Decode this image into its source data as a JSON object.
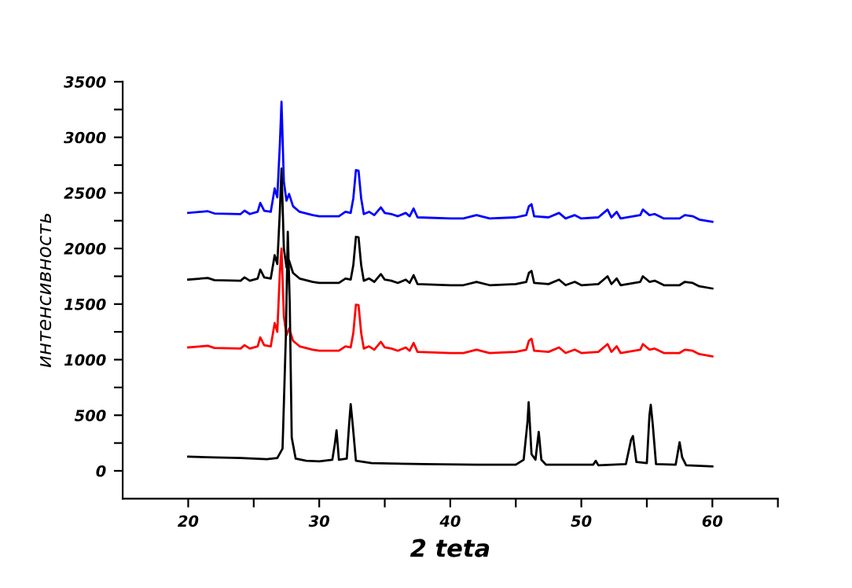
{
  "chart_data": {
    "type": "line",
    "xlabel": "2 teta",
    "ylabel": "интенсивность",
    "xlim": [
      15,
      65
    ],
    "ylim": [
      -250,
      3500
    ],
    "xticks": [
      20,
      {
        "value": 25,
        "label": null
      },
      30,
      {
        "value": 35,
        "label": null
      },
      40,
      {
        "value": 45,
        "label": null
      },
      50,
      {
        "value": 55,
        "label": null
      },
      60,
      {
        "value": 65,
        "label": null
      }
    ],
    "yticks": [
      0,
      {
        "value": 250,
        "label": null
      },
      500,
      {
        "value": 750,
        "label": null
      },
      1000,
      {
        "value": 1250,
        "label": null
      },
      1500,
      {
        "value": 1750,
        "label": null
      },
      2000,
      {
        "value": 2250,
        "label": null
      },
      2500,
      {
        "value": 2750,
        "label": null
      },
      3000,
      {
        "value": 3250,
        "label": null
      },
      3500
    ],
    "grid": false,
    "legend": false,
    "x": [
      20,
      21.5,
      22,
      24,
      24.3,
      24.7,
      25.3,
      25.5,
      25.8,
      26.3,
      26.6,
      26.8,
      27.0,
      27.12,
      27.3,
      27.5,
      27.7,
      28.0,
      28.5,
      29.5,
      30,
      31.5,
      32.0,
      32.4,
      32.6,
      32.8,
      33.0,
      33.2,
      33.4,
      33.8,
      34.2,
      34.7,
      35.0,
      35.5,
      36,
      36.6,
      36.9,
      37.2,
      37.5,
      40,
      41,
      42,
      43,
      45,
      45.8,
      46.0,
      46.2,
      46.4,
      47.5,
      48.3,
      48.8,
      49.5,
      50,
      51.3,
      52,
      52.3,
      52.7,
      53,
      54.5,
      54.7,
      55.2,
      55.6,
      56.3,
      57.5,
      57.9,
      58.5,
      59,
      60
    ],
    "series": [
      {
        "color": "#0000ff",
        "values": [
          2320,
          2335,
          2315,
          2310,
          2340,
          2310,
          2330,
          2410,
          2340,
          2330,
          2540,
          2460,
          2950,
          3320,
          2600,
          2430,
          2490,
          2380,
          2330,
          2300,
          2290,
          2290,
          2330,
          2320,
          2450,
          2705,
          2700,
          2450,
          2310,
          2330,
          2300,
          2370,
          2320,
          2310,
          2290,
          2320,
          2290,
          2360,
          2280,
          2270,
          2270,
          2300,
          2270,
          2280,
          2300,
          2380,
          2398,
          2290,
          2280,
          2320,
          2270,
          2300,
          2270,
          2280,
          2350,
          2280,
          2330,
          2270,
          2300,
          2350,
          2300,
          2310,
          2270,
          2270,
          2300,
          2290,
          2260,
          2240
        ]
      },
      {
        "color": "#000000",
        "values": [
          1720,
          1735,
          1715,
          1710,
          1740,
          1710,
          1730,
          1810,
          1740,
          1730,
          1940,
          1860,
          2350,
          2720,
          2000,
          1830,
          1890,
          1780,
          1730,
          1700,
          1690,
          1690,
          1730,
          1720,
          1850,
          2105,
          2100,
          1850,
          1710,
          1730,
          1700,
          1770,
          1720,
          1710,
          1690,
          1720,
          1690,
          1760,
          1680,
          1670,
          1670,
          1700,
          1670,
          1680,
          1700,
          1780,
          1798,
          1690,
          1680,
          1720,
          1670,
          1700,
          1670,
          1680,
          1750,
          1680,
          1730,
          1670,
          1700,
          1750,
          1700,
          1710,
          1670,
          1670,
          1700,
          1690,
          1660,
          1640
        ]
      },
      {
        "color": "#ff0000",
        "values": [
          1110,
          1125,
          1105,
          1100,
          1130,
          1100,
          1120,
          1200,
          1130,
          1120,
          1330,
          1250,
          1800,
          2000,
          1390,
          1220,
          1280,
          1170,
          1120,
          1090,
          1080,
          1080,
          1120,
          1110,
          1240,
          1495,
          1490,
          1240,
          1100,
          1120,
          1090,
          1160,
          1110,
          1100,
          1080,
          1110,
          1080,
          1150,
          1070,
          1060,
          1060,
          1090,
          1060,
          1070,
          1090,
          1170,
          1188,
          1080,
          1070,
          1110,
          1060,
          1090,
          1060,
          1070,
          1140,
          1070,
          1120,
          1060,
          1090,
          1140,
          1090,
          1100,
          1060,
          1060,
          1090,
          1080,
          1050,
          1030
        ]
      },
      {
        "color": "#000000",
        "x": [
          20,
          22,
          24,
          25,
          26,
          26.8,
          27.2,
          27.45,
          27.6,
          27.75,
          27.9,
          28.2,
          29,
          30,
          31,
          31.2,
          31.32,
          31.5,
          32.1,
          32.3,
          32.4,
          32.55,
          32.8,
          34,
          38,
          42,
          45,
          45.6,
          45.9,
          45.98,
          46.2,
          46.5,
          46.75,
          46.95,
          47.3,
          50.9,
          51.1,
          51.3,
          53.4,
          53.8,
          53.94,
          54.2,
          55.0,
          55.2,
          55.3,
          55.45,
          55.7,
          57.2,
          57.5,
          57.7,
          58,
          60
        ],
        "values": [
          128,
          120,
          115,
          110,
          105,
          115,
          200,
          1200,
          2150,
          1500,
          300,
          110,
          90,
          85,
          100,
          250,
          364,
          100,
          110,
          450,
          600,
          420,
          90,
          70,
          60,
          55,
          55,
          100,
          450,
          618,
          150,
          100,
          351,
          100,
          55,
          55,
          90,
          50,
          60,
          280,
          313,
          80,
          70,
          500,
          595,
          420,
          60,
          55,
          257,
          120,
          50,
          40
        ]
      }
    ]
  }
}
